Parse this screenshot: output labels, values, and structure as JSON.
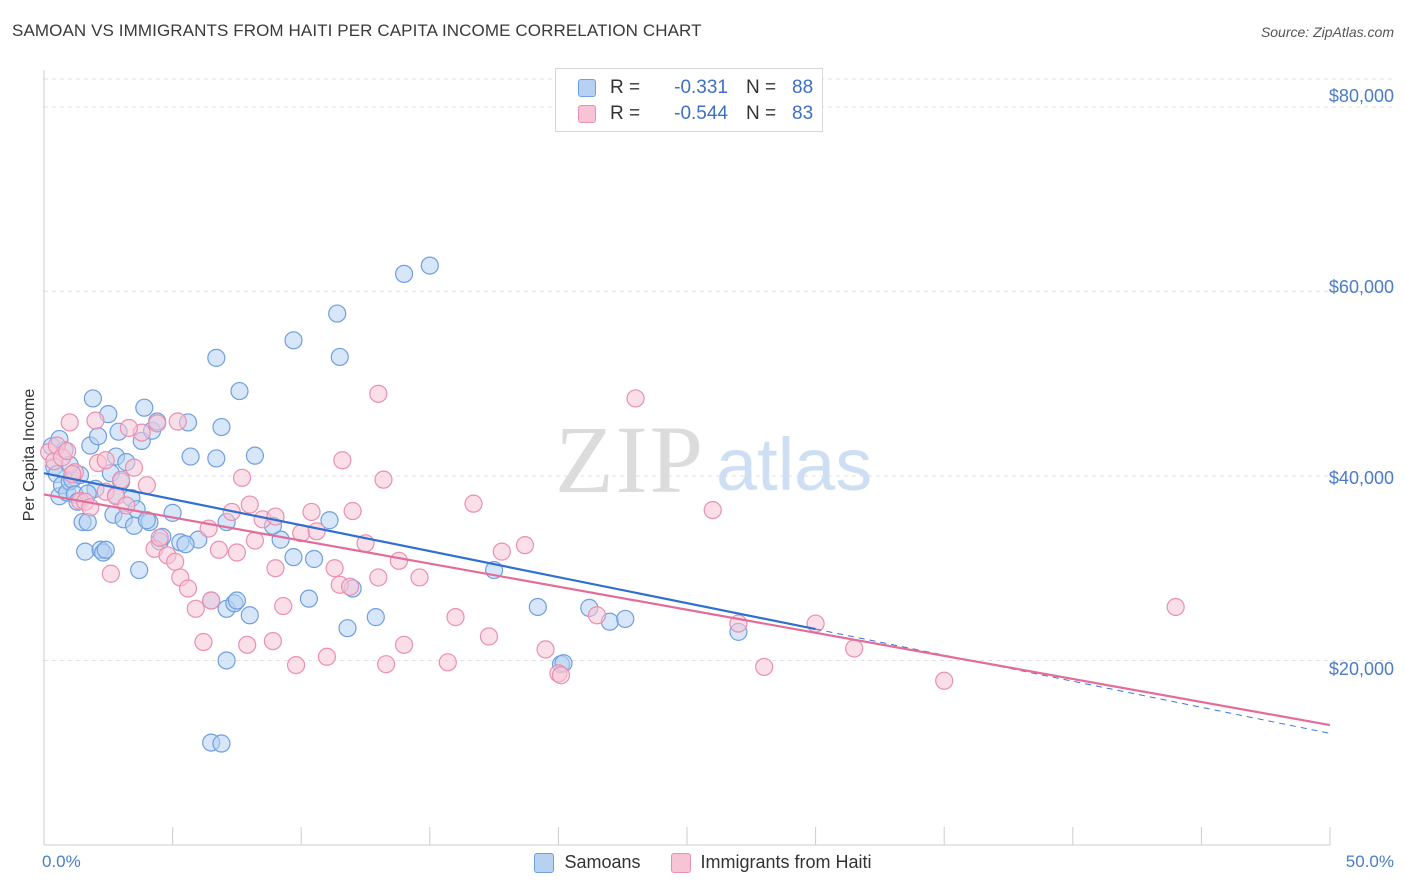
{
  "title": "SAMOAN VS IMMIGRANTS FROM HAITI PER CAPITA INCOME CORRELATION CHART",
  "source": "Source: ZipAtlas.com",
  "watermark": {
    "zip": "ZIP",
    "atlas": "atlas"
  },
  "legend": {
    "r_label": "R =",
    "n_label": "N =",
    "rows": [
      {
        "r": "-0.331",
        "n": "88",
        "fill": "#b7d1f3",
        "stroke": "#6f9fe0"
      },
      {
        "r": "-0.544",
        "n": "83",
        "fill": "#f7c4d5",
        "stroke": "#ea8fb0"
      }
    ]
  },
  "bottom_legend": [
    "Samoans",
    "Immigrants from Haiti"
  ],
  "chart_data": {
    "type": "scatter",
    "title": "SAMOAN VS IMMIGRANTS FROM HAITI PER CAPITA INCOME CORRELATION CHART",
    "ylabel": "Per Capita Income",
    "xlabel": "",
    "xlim": [
      0,
      50
    ],
    "ylim": [
      0,
      84000
    ],
    "x_tick_labels": [
      "0.0%",
      "50.0%"
    ],
    "y_ticks": [
      20000,
      40000,
      60000,
      80000
    ],
    "y_tick_labels": [
      "$20,000",
      "$40,000",
      "$60,000",
      "$80,000"
    ],
    "grid": "horizontal-dashed",
    "legend_position": "top-center",
    "series": [
      {
        "name": "Samoans",
        "color": "#6f9fe0",
        "fill": "#b7d1f3",
        "trend": {
          "x0": 0,
          "y0": 40300,
          "x1": 30,
          "y1": 23400,
          "dashed_to_x": 50,
          "dashed_to_y": 12100
        },
        "points": [
          [
            0.3,
            43200
          ],
          [
            0.4,
            41000
          ],
          [
            0.5,
            40200
          ],
          [
            0.6,
            37800
          ],
          [
            0.7,
            39000
          ],
          [
            0.8,
            42800
          ],
          [
            0.9,
            38200
          ],
          [
            1.0,
            39400
          ],
          [
            1.1,
            39600
          ],
          [
            1.2,
            38000
          ],
          [
            1.3,
            37200
          ],
          [
            1.4,
            40100
          ],
          [
            1.5,
            35000
          ],
          [
            1.6,
            31800
          ],
          [
            1.7,
            35000
          ],
          [
            1.8,
            43300
          ],
          [
            1.9,
            48400
          ],
          [
            2.0,
            38600
          ],
          [
            2.1,
            44300
          ],
          [
            2.2,
            32000
          ],
          [
            2.3,
            31700
          ],
          [
            2.4,
            32000
          ],
          [
            2.5,
            46700
          ],
          [
            2.6,
            40300
          ],
          [
            2.7,
            35800
          ],
          [
            2.8,
            42100
          ],
          [
            2.9,
            44800
          ],
          [
            3.0,
            39400
          ],
          [
            3.1,
            35300
          ],
          [
            3.2,
            41500
          ],
          [
            3.4,
            37600
          ],
          [
            3.5,
            34600
          ],
          [
            3.6,
            36400
          ],
          [
            3.7,
            29800
          ],
          [
            3.8,
            43800
          ],
          [
            3.9,
            47400
          ],
          [
            4.1,
            35000
          ],
          [
            4.2,
            44900
          ],
          [
            4.4,
            45900
          ],
          [
            4.5,
            32900
          ],
          [
            4.6,
            33400
          ],
          [
            5.0,
            36000
          ],
          [
            5.3,
            32800
          ],
          [
            5.6,
            45800
          ],
          [
            5.7,
            42100
          ],
          [
            6.0,
            33100
          ],
          [
            6.5,
            26500
          ],
          [
            6.7,
            41900
          ],
          [
            6.9,
            45300
          ],
          [
            7.1,
            25600
          ],
          [
            7.4,
            26200
          ],
          [
            7.5,
            26500
          ],
          [
            8.0,
            24900
          ],
          [
            8.2,
            42200
          ],
          [
            9.2,
            33100
          ],
          [
            9.7,
            31200
          ],
          [
            10.5,
            31000
          ],
          [
            11.1,
            35200
          ],
          [
            12.0,
            27800
          ],
          [
            12.9,
            24700
          ],
          [
            7.6,
            49200
          ],
          [
            9.7,
            54700
          ],
          [
            11.4,
            57600
          ],
          [
            11.5,
            52900
          ],
          [
            6.7,
            52800
          ],
          [
            14.0,
            61900
          ],
          [
            15.0,
            62800
          ],
          [
            7.1,
            35000
          ],
          [
            5.5,
            32600
          ],
          [
            6.5,
            11100
          ],
          [
            6.9,
            11000
          ],
          [
            7.1,
            20000
          ],
          [
            10.3,
            26700
          ],
          [
            11.8,
            23500
          ],
          [
            17.5,
            29800
          ],
          [
            19.2,
            25800
          ],
          [
            20.1,
            19600
          ],
          [
            20.2,
            19700
          ],
          [
            21.2,
            25700
          ],
          [
            22.0,
            24200
          ],
          [
            22.6,
            24500
          ],
          [
            27.0,
            23100
          ],
          [
            8.9,
            34600
          ],
          [
            4.0,
            35200
          ],
          [
            2.8,
            37900
          ],
          [
            1.7,
            38100
          ],
          [
            1.0,
            41200
          ],
          [
            0.6,
            44000
          ]
        ]
      },
      {
        "name": "Immigrants from Haiti",
        "color": "#ea8fb0",
        "fill": "#f7c4d5",
        "trend": {
          "x0": 0,
          "y0": 38000,
          "x1": 50,
          "y1": 13000
        },
        "points": [
          [
            0.2,
            42600
          ],
          [
            0.4,
            41600
          ],
          [
            0.5,
            43300
          ],
          [
            0.7,
            42000
          ],
          [
            0.9,
            42700
          ],
          [
            1.0,
            45800
          ],
          [
            1.2,
            40400
          ],
          [
            1.4,
            37300
          ],
          [
            1.6,
            37200
          ],
          [
            1.8,
            36600
          ],
          [
            2.0,
            46000
          ],
          [
            2.1,
            41400
          ],
          [
            2.4,
            38300
          ],
          [
            2.6,
            29400
          ],
          [
            2.8,
            37800
          ],
          [
            3.0,
            39600
          ],
          [
            3.2,
            36800
          ],
          [
            3.5,
            40900
          ],
          [
            3.8,
            44700
          ],
          [
            4.0,
            39000
          ],
          [
            4.3,
            32100
          ],
          [
            4.5,
            33300
          ],
          [
            4.8,
            31400
          ],
          [
            5.1,
            30700
          ],
          [
            5.3,
            29000
          ],
          [
            5.6,
            27800
          ],
          [
            5.9,
            25600
          ],
          [
            6.2,
            22000
          ],
          [
            6.4,
            34300
          ],
          [
            6.8,
            32000
          ],
          [
            7.3,
            36100
          ],
          [
            7.5,
            31700
          ],
          [
            7.9,
            21700
          ],
          [
            8.2,
            33000
          ],
          [
            8.5,
            35300
          ],
          [
            8.9,
            22100
          ],
          [
            9.0,
            30000
          ],
          [
            9.3,
            25900
          ],
          [
            9.8,
            19500
          ],
          [
            10.0,
            33800
          ],
          [
            10.4,
            36100
          ],
          [
            10.6,
            34000
          ],
          [
            11.0,
            20400
          ],
          [
            11.3,
            30000
          ],
          [
            11.5,
            28200
          ],
          [
            12.0,
            36200
          ],
          [
            12.5,
            32700
          ],
          [
            13.0,
            29000
          ],
          [
            13.3,
            19600
          ],
          [
            13.8,
            30800
          ],
          [
            14.0,
            21700
          ],
          [
            14.6,
            29000
          ],
          [
            15.7,
            19800
          ],
          [
            16.0,
            24700
          ],
          [
            16.7,
            37000
          ],
          [
            17.3,
            22600
          ],
          [
            17.8,
            31800
          ],
          [
            18.7,
            32500
          ],
          [
            19.5,
            21200
          ],
          [
            20.0,
            18600
          ],
          [
            20.1,
            18400
          ],
          [
            21.5,
            24900
          ],
          [
            23.0,
            48400
          ],
          [
            26.0,
            36300
          ],
          [
            27.0,
            24000
          ],
          [
            28.0,
            19300
          ],
          [
            30.0,
            24000
          ],
          [
            31.5,
            21300
          ],
          [
            35.0,
            17800
          ],
          [
            44.0,
            25800
          ],
          [
            13.0,
            48900
          ],
          [
            11.6,
            41700
          ],
          [
            13.2,
            39600
          ],
          [
            9.0,
            35600
          ],
          [
            6.5,
            26500
          ],
          [
            5.2,
            45900
          ],
          [
            4.4,
            45700
          ],
          [
            7.7,
            39800
          ],
          [
            11.9,
            28000
          ],
          [
            8.0,
            36900
          ],
          [
            3.3,
            45200
          ],
          [
            2.4,
            41700
          ],
          [
            1.1,
            40200
          ]
        ]
      }
    ]
  }
}
